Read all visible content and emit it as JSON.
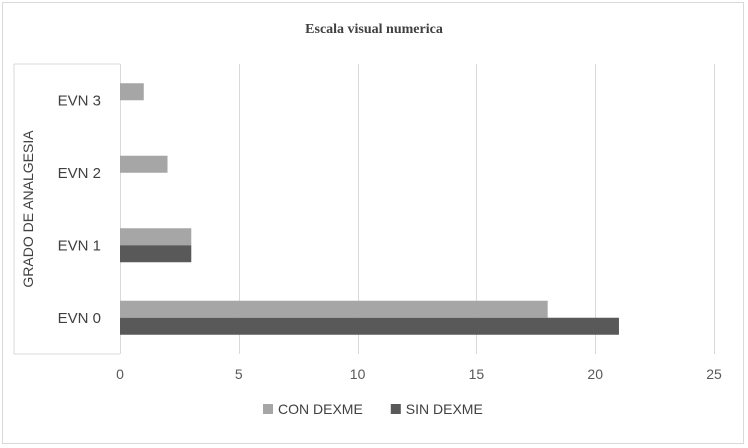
{
  "chart_data": {
    "type": "bar",
    "orientation": "horizontal",
    "title": "Escala visual numerica",
    "xlabel": "",
    "ylabel": "GRADO DE ANALGESIA",
    "categories": [
      "EVN 0",
      "EVN 1",
      "EVN 2",
      "EVN 3"
    ],
    "series": [
      {
        "name": "CON DEXME",
        "values": [
          18,
          3,
          2,
          1
        ],
        "color": "#a6a6a6"
      },
      {
        "name": "SIN DEXME",
        "values": [
          21,
          3,
          0,
          0
        ],
        "color": "#595959"
      }
    ],
    "xlim": [
      0,
      25
    ],
    "xticks": [
      0,
      5,
      10,
      15,
      20,
      25
    ],
    "grid": true,
    "legend_position": "bottom"
  }
}
